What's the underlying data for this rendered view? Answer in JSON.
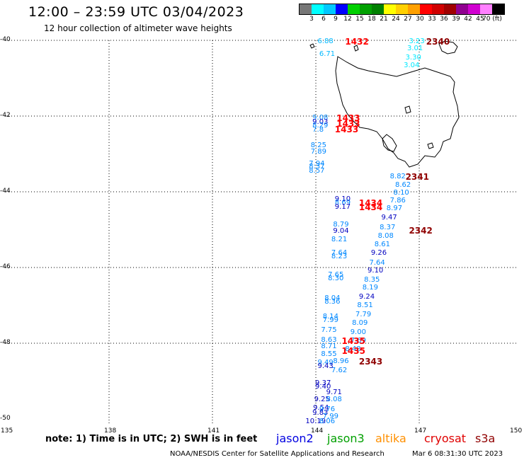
{
  "header": {
    "title": "12:00 – 23:59 UTC 03/04/2023",
    "subtitle": "12 hour collection of altimeter wave heights"
  },
  "legend": {
    "colors": [
      "#777777",
      "#00ffff",
      "#00c8ff",
      "#0000ff",
      "#00d000",
      "#00a000",
      "#008000",
      "#ffff00",
      "#ffd000",
      "#ffa000",
      "#ff0000",
      "#d00000",
      "#a00000",
      "#900090",
      "#d000d0",
      "#ff80ff",
      "#000000"
    ],
    "labels": [
      "3",
      "6",
      "9",
      "12",
      "15",
      "18",
      "21",
      "24",
      "27",
      "30",
      "33",
      "36",
      "39",
      "42",
      "45",
      "70 (ft)"
    ]
  },
  "axes": {
    "lat_labels": [
      "-40",
      "-42",
      "-44",
      "-46",
      "-48",
      "-50"
    ],
    "lon_labels": [
      "135",
      "138",
      "141",
      "144",
      "147",
      "150"
    ]
  },
  "observations": [
    {
      "v": "6.88",
      "c": "#00b8ff",
      "lat": -40.03,
      "lon": 144.05
    },
    {
      "v": "6.71",
      "c": "#00b8ff",
      "lat": -40.37,
      "lon": 144.1
    },
    {
      "v": "3.23",
      "c": "#00e8ff",
      "lat": -40.03,
      "lon": 146.7
    },
    {
      "v": "3.01",
      "c": "#00e8ff",
      "lat": -40.22,
      "lon": 146.65
    },
    {
      "v": "3.30",
      "c": "#00e8ff",
      "lat": -40.46,
      "lon": 146.6
    },
    {
      "v": "3.04",
      "c": "#00e8ff",
      "lat": -40.68,
      "lon": 146.55
    },
    {
      "v": "9.08",
      "c": "#0088ff",
      "lat": -42.06,
      "lon": 143.9
    },
    {
      "v": "9.03",
      "c": "#0000c0",
      "lat": -42.17,
      "lon": 143.9
    },
    {
      "v": "8.29",
      "c": "#0088ff",
      "lat": -42.27,
      "lon": 143.9
    },
    {
      "v": "7.8",
      "c": "#0088ff",
      "lat": -42.38,
      "lon": 143.9
    },
    {
      "v": "8.25",
      "c": "#0088ff",
      "lat": -42.78,
      "lon": 143.85
    },
    {
      "v": "7.89",
      "c": "#0088ff",
      "lat": -42.96,
      "lon": 143.85
    },
    {
      "v": "7.94",
      "c": "#0088ff",
      "lat": -43.27,
      "lon": 143.8
    },
    {
      "v": "8.37",
      "c": "#0088ff",
      "lat": -43.35,
      "lon": 143.8
    },
    {
      "v": "8.57",
      "c": "#0088ff",
      "lat": -43.45,
      "lon": 143.8
    },
    {
      "v": "8.82",
      "c": "#0088ff",
      "lat": -43.6,
      "lon": 146.15
    },
    {
      "v": "8.62",
      "c": "#0088ff",
      "lat": -43.83,
      "lon": 146.3
    },
    {
      "v": "8.10",
      "c": "#0088ff",
      "lat": -44.03,
      "lon": 146.25
    },
    {
      "v": "7.86",
      "c": "#0088ff",
      "lat": -44.25,
      "lon": 146.15
    },
    {
      "v": "8.97",
      "c": "#0088ff",
      "lat": -44.45,
      "lon": 146.05
    },
    {
      "v": "9.47",
      "c": "#0000c0",
      "lat": -44.7,
      "lon": 145.9
    },
    {
      "v": "8.37",
      "c": "#0088ff",
      "lat": -44.95,
      "lon": 145.85
    },
    {
      "v": "8.08",
      "c": "#0088ff",
      "lat": -45.18,
      "lon": 145.8
    },
    {
      "v": "8.61",
      "c": "#0088ff",
      "lat": -45.4,
      "lon": 145.7
    },
    {
      "v": "9.26",
      "c": "#0000c0",
      "lat": -45.63,
      "lon": 145.6
    },
    {
      "v": "7.64",
      "c": "#0088ff",
      "lat": -45.88,
      "lon": 145.55
    },
    {
      "v": "9.10",
      "c": "#0000c0",
      "lat": -46.1,
      "lon": 145.5
    },
    {
      "v": "8.35",
      "c": "#0088ff",
      "lat": -46.33,
      "lon": 145.4
    },
    {
      "v": "8.19",
      "c": "#0088ff",
      "lat": -46.55,
      "lon": 145.35
    },
    {
      "v": "9.24",
      "c": "#0000c0",
      "lat": -46.78,
      "lon": 145.25
    },
    {
      "v": "8.51",
      "c": "#0088ff",
      "lat": -47.0,
      "lon": 145.2
    },
    {
      "v": "7.79",
      "c": "#0088ff",
      "lat": -47.25,
      "lon": 145.15
    },
    {
      "v": "8.09",
      "c": "#0088ff",
      "lat": -47.48,
      "lon": 145.05
    },
    {
      "v": "9.00",
      "c": "#0088ff",
      "lat": -47.72,
      "lon": 145.0
    },
    {
      "v": "7.69",
      "c": "#0088ff",
      "lat": -47.95,
      "lon": 145.0
    },
    {
      "v": "8.48",
      "c": "#0088ff",
      "lat": -48.16,
      "lon": 144.85
    },
    {
      "v": "8.96",
      "c": "#0088ff",
      "lat": -48.48,
      "lon": 144.5
    },
    {
      "v": "7.62",
      "c": "#0088ff",
      "lat": -48.73,
      "lon": 144.45
    },
    {
      "v": "9.10",
      "c": "#0000c0",
      "lat": -44.2,
      "lon": 144.55
    },
    {
      "v": "8.69",
      "c": "#0088ff",
      "lat": -44.3,
      "lon": 144.55
    },
    {
      "v": "9.17",
      "c": "#0000c0",
      "lat": -44.42,
      "lon": 144.55
    },
    {
      "v": "8.79",
      "c": "#0088ff",
      "lat": -44.88,
      "lon": 144.5
    },
    {
      "v": "9.04",
      "c": "#0000c0",
      "lat": -45.05,
      "lon": 144.5
    },
    {
      "v": "8.21",
      "c": "#0088ff",
      "lat": -45.27,
      "lon": 144.45
    },
    {
      "v": "7.64",
      "c": "#0088ff",
      "lat": -45.62,
      "lon": 144.45
    },
    {
      "v": "8.23",
      "c": "#0088ff",
      "lat": -45.72,
      "lon": 144.45
    },
    {
      "v": "7.65",
      "c": "#0088ff",
      "lat": -46.2,
      "lon": 144.35
    },
    {
      "v": "8.30",
      "c": "#0088ff",
      "lat": -46.3,
      "lon": 144.35
    },
    {
      "v": "8.04",
      "c": "#0088ff",
      "lat": -46.82,
      "lon": 144.25
    },
    {
      "v": "8.36",
      "c": "#0088ff",
      "lat": -46.92,
      "lon": 144.25
    },
    {
      "v": "8.14",
      "c": "#0088ff",
      "lat": -47.3,
      "lon": 144.2
    },
    {
      "v": "7.99",
      "c": "#0088ff",
      "lat": -47.4,
      "lon": 144.2
    },
    {
      "v": "7.75",
      "c": "#0088ff",
      "lat": -47.67,
      "lon": 144.15
    },
    {
      "v": "8.63",
      "c": "#0088ff",
      "lat": -47.93,
      "lon": 144.15
    },
    {
      "v": "8.71",
      "c": "#0088ff",
      "lat": -48.1,
      "lon": 144.15
    },
    {
      "v": "8.55",
      "c": "#0088ff",
      "lat": -48.3,
      "lon": 144.15
    },
    {
      "v": "9.49",
      "c": "#0088ff",
      "lat": -48.52,
      "lon": 144.05
    },
    {
      "v": "9.43",
      "c": "#0000c0",
      "lat": -48.62,
      "lon": 144.05
    },
    {
      "v": "9.37",
      "c": "#0000c0",
      "lat": -49.07,
      "lon": 143.98
    },
    {
      "v": "9.40",
      "c": "#0000c0",
      "lat": -49.15,
      "lon": 143.98
    },
    {
      "v": "9.71",
      "c": "#0000c0",
      "lat": -49.3,
      "lon": 144.3
    },
    {
      "v": "9.25",
      "c": "#0000c0",
      "lat": -49.5,
      "lon": 143.95
    },
    {
      "v": "8.08",
      "c": "#0088ff",
      "lat": -49.5,
      "lon": 144.3
    },
    {
      "v": "9.54",
      "c": "#0000c0",
      "lat": -49.72,
      "lon": 143.92
    },
    {
      "v": "9.76",
      "c": "#0088ff",
      "lat": -49.75,
      "lon": 144.1
    },
    {
      "v": "9.83",
      "c": "#0000c0",
      "lat": -49.85,
      "lon": 143.9
    },
    {
      "v": "7.99",
      "c": "#0088ff",
      "lat": -49.95,
      "lon": 144.2
    },
    {
      "v": "10.19",
      "c": "#0000c0",
      "lat": -50.08,
      "lon": 143.7
    },
    {
      "v": "8.06",
      "c": "#0088ff",
      "lat": -50.08,
      "lon": 144.1
    }
  ],
  "times": [
    {
      "t": "1432",
      "c": "#ff0000",
      "lat": -40.03,
      "lon": 144.85
    },
    {
      "t": "2340",
      "c": "#900000",
      "lat": -40.03,
      "lon": 147.2
    },
    {
      "t": "1433",
      "c": "#ff0000",
      "lat": -42.06,
      "lon": 144.6
    },
    {
      "t": "1433",
      "c": "#ff0000",
      "lat": -42.2,
      "lon": 144.6
    },
    {
      "t": "1433",
      "c": "#ff0000",
      "lat": -42.36,
      "lon": 144.55
    },
    {
      "t": "2341",
      "c": "#900000",
      "lat": -43.6,
      "lon": 146.6
    },
    {
      "t": "1434",
      "c": "#ff0000",
      "lat": -44.3,
      "lon": 145.25
    },
    {
      "t": "1434",
      "c": "#ff0000",
      "lat": -44.42,
      "lon": 145.25
    },
    {
      "t": "2342",
      "c": "#900000",
      "lat": -45.02,
      "lon": 146.7
    },
    {
      "t": "1435",
      "c": "#ff0000",
      "lat": -47.95,
      "lon": 144.75
    },
    {
      "t": "1435",
      "c": "#ff0000",
      "lat": -48.2,
      "lon": 144.75
    },
    {
      "t": "2343",
      "c": "#900000",
      "lat": -48.48,
      "lon": 145.25
    }
  ],
  "footer": {
    "note": "note: 1) Time is in UTC; 2) SWH is in feet",
    "satellites": [
      {
        "name": "jason2",
        "color": "#0000e0"
      },
      {
        "name": "jason3",
        "color": "#00a000"
      },
      {
        "name": "altika",
        "color": "#ff9000"
      },
      {
        "name": "cryosat",
        "color": "#e00000"
      },
      {
        "name": "s3a",
        "color": "#900000"
      }
    ],
    "credit": "NOAA/NESDIS Center for Satellite Applications and Research",
    "generated": "Mar  6 08:31:30 UTC 2023"
  }
}
